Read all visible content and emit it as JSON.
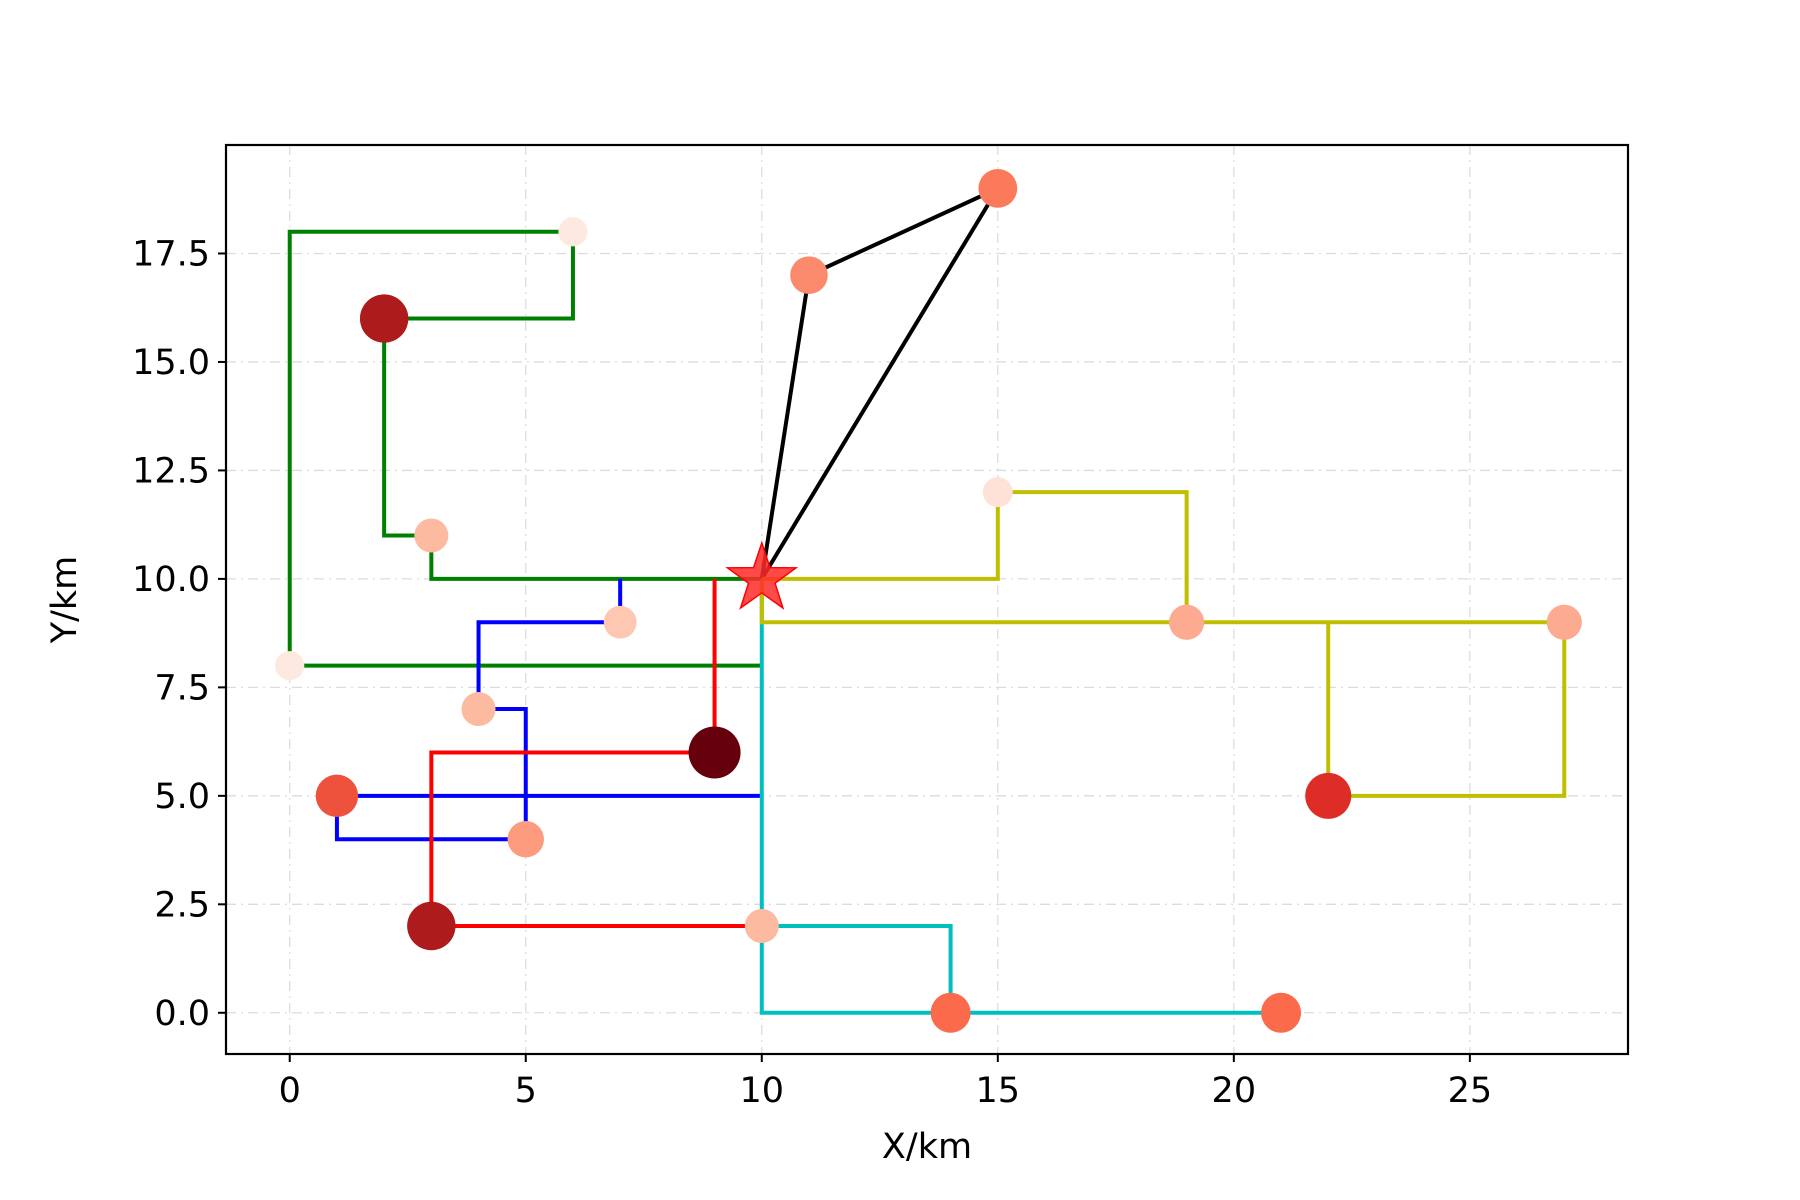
{
  "chart_data": {
    "type": "line",
    "title": "",
    "xlabel": "X/km",
    "ylabel": "Y/km",
    "xlim": [
      -1.35,
      28.35
    ],
    "ylim": [
      -0.95,
      20.0
    ],
    "xticks": [
      "0",
      "5",
      "10",
      "15",
      "20",
      "25"
    ],
    "xtick_values": [
      0,
      5,
      10,
      15,
      20,
      25
    ],
    "yticks": [
      "0.0",
      "2.5",
      "5.0",
      "7.5",
      "10.0",
      "12.5",
      "15.0",
      "17.5"
    ],
    "ytick_values": [
      0,
      2.5,
      5,
      7.5,
      10,
      12.5,
      15,
      17.5
    ],
    "grid": true,
    "depot": {
      "x": 10,
      "y": 10,
      "marker": "star",
      "color": "#ff2a2a"
    },
    "customers": [
      {
        "x": 2,
        "y": 16,
        "demand_level": 0.85
      },
      {
        "x": 6,
        "y": 18,
        "demand_level": 0.05
      },
      {
        "x": 3,
        "y": 11,
        "demand_level": 0.25
      },
      {
        "x": 0,
        "y": 8,
        "demand_level": 0.05
      },
      {
        "x": 7,
        "y": 9,
        "demand_level": 0.2
      },
      {
        "x": 4,
        "y": 7,
        "demand_level": 0.25
      },
      {
        "x": 9,
        "y": 6,
        "demand_level": 1.0
      },
      {
        "x": 1,
        "y": 5,
        "demand_level": 0.6
      },
      {
        "x": 5,
        "y": 4,
        "demand_level": 0.35
      },
      {
        "x": 3,
        "y": 2,
        "demand_level": 0.85
      },
      {
        "x": 10,
        "y": 2,
        "demand_level": 0.25
      },
      {
        "x": 14,
        "y": 0,
        "demand_level": 0.5
      },
      {
        "x": 21,
        "y": 0,
        "demand_level": 0.5
      },
      {
        "x": 15,
        "y": 19,
        "demand_level": 0.45
      },
      {
        "x": 11,
        "y": 17,
        "demand_level": 0.4
      },
      {
        "x": 15,
        "y": 12,
        "demand_level": 0.08
      },
      {
        "x": 19,
        "y": 9,
        "demand_level": 0.3
      },
      {
        "x": 27,
        "y": 9,
        "demand_level": 0.3
      },
      {
        "x": 22,
        "y": 5,
        "demand_level": 0.75
      }
    ],
    "series": [
      {
        "color": "#008000",
        "x": [
          10,
          3,
          3,
          2,
          2,
          6,
          6,
          0,
          0,
          10
        ],
        "y": [
          10,
          10,
          11,
          11,
          16,
          16,
          18,
          18,
          8,
          8
        ]
      },
      {
        "color": "#0000ff",
        "x": [
          7,
          7,
          4,
          4,
          5,
          5,
          1,
          1,
          10
        ],
        "y": [
          10,
          9,
          9,
          7,
          7,
          4,
          4,
          5,
          5
        ]
      },
      {
        "color": "#ff0000",
        "x": [
          9,
          9,
          3,
          3,
          10
        ],
        "y": [
          10,
          6,
          6,
          2,
          2
        ]
      },
      {
        "color": "#00bfbf",
        "x": [
          10,
          10,
          14,
          14,
          21,
          10,
          10
        ],
        "y": [
          10,
          2,
          2,
          0,
          0,
          0,
          10
        ]
      },
      {
        "color": "#000000",
        "x": [
          10,
          15,
          15,
          11,
          11,
          10,
          10
        ],
        "y": [
          10,
          19,
          19,
          17,
          17,
          10,
          10
        ]
      },
      {
        "color": "#bfbf00",
        "x": [
          10,
          15,
          15,
          19,
          19,
          27,
          27,
          22,
          22,
          10,
          10
        ],
        "y": [
          10,
          10,
          12,
          12,
          9,
          9,
          5,
          5,
          9,
          9,
          10
        ]
      }
    ]
  }
}
